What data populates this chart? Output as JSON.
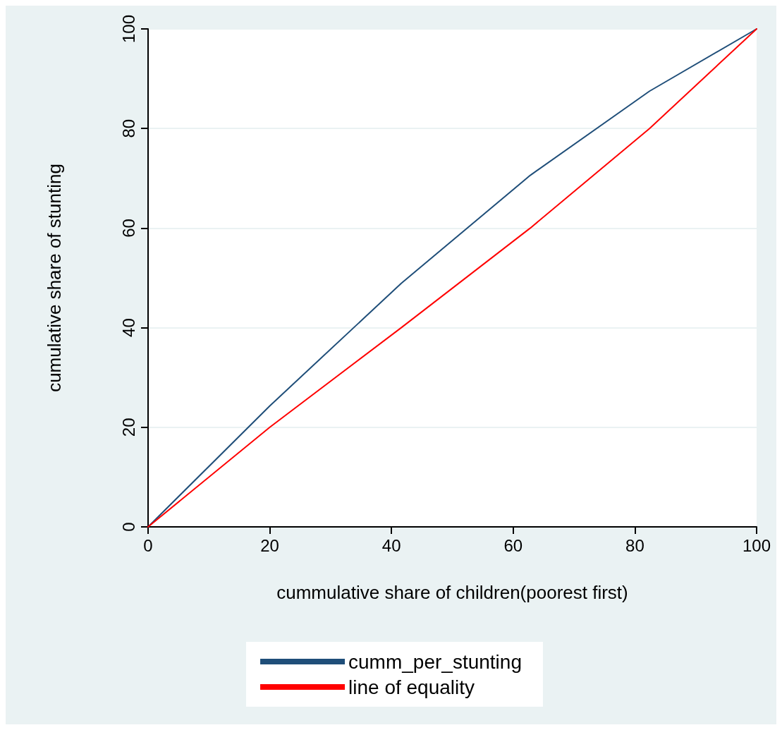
{
  "chart_data": {
    "type": "line",
    "xlabel": "cummulative share of children(poorest first)",
    "ylabel": "cumulative share of stunting",
    "x": [
      0,
      20,
      41.6,
      62.8,
      82.4,
      100
    ],
    "series": [
      {
        "name": "cumm_per_stunting",
        "color": "#1f4e79",
        "values": [
          0,
          24.3,
          48.9,
          70.6,
          87.5,
          100
        ]
      },
      {
        "name": "line of equality",
        "color": "#ff0000",
        "values": [
          0,
          20,
          40,
          60,
          80,
          100
        ]
      }
    ],
    "xlim": [
      0,
      100
    ],
    "xticks": [
      0,
      20,
      40,
      60,
      80,
      100
    ],
    "ylim": [
      0,
      100
    ],
    "yticks": [
      0,
      20,
      40,
      60,
      80,
      100
    ],
    "grid": "y",
    "legend": "bottom",
    "marker": "none",
    "line_style": "solid"
  }
}
